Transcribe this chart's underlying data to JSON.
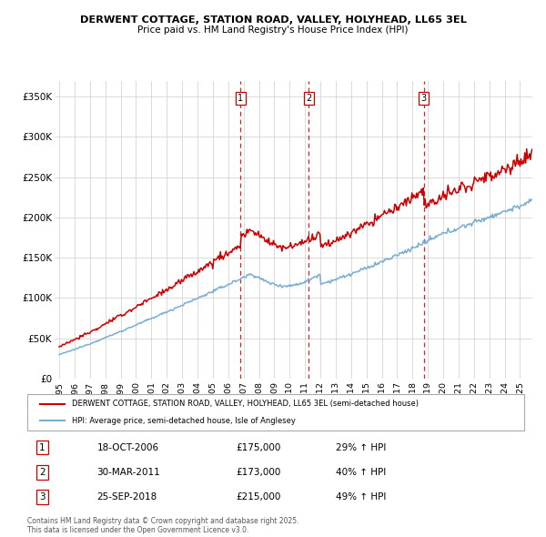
{
  "title": "DERWENT COTTAGE, STATION ROAD, VALLEY, HOLYHEAD, LL65 3EL",
  "subtitle": "Price paid vs. HM Land Registry's House Price Index (HPI)",
  "ylabel_ticks": [
    "£0",
    "£50K",
    "£100K",
    "£150K",
    "£200K",
    "£250K",
    "£300K",
    "£350K"
  ],
  "ytick_vals": [
    0,
    50000,
    100000,
    150000,
    200000,
    250000,
    300000,
    350000
  ],
  "ylim": [
    0,
    370000
  ],
  "xlim_start": 1994.7,
  "xlim_end": 2025.8,
  "house_color": "#cc0000",
  "hpi_color": "#7aadd4",
  "background_color": "#ffffff",
  "grid_color": "#cccccc",
  "transactions": [
    {
      "num": 1,
      "year": 2006.8,
      "price": 175000,
      "date": "18-OCT-2006",
      "pct": "29%",
      "dir": "↑"
    },
    {
      "num": 2,
      "year": 2011.25,
      "price": 173000,
      "date": "30-MAR-2011",
      "pct": "40%",
      "dir": "↑"
    },
    {
      "num": 3,
      "year": 2018.73,
      "price": 215000,
      "date": "25-SEP-2018",
      "pct": "49%",
      "dir": "↑"
    }
  ],
  "legend_house_label": "DERWENT COTTAGE, STATION ROAD, VALLEY, HOLYHEAD, LL65 3EL (semi-detached house)",
  "legend_hpi_label": "HPI: Average price, semi-detached house, Isle of Anglesey",
  "footer": "Contains HM Land Registry data © Crown copyright and database right 2025.\nThis data is licensed under the Open Government Licence v3.0.",
  "x_tick_years": [
    1995,
    1996,
    1997,
    1998,
    1999,
    2000,
    2001,
    2002,
    2003,
    2004,
    2005,
    2006,
    2007,
    2008,
    2009,
    2010,
    2011,
    2012,
    2013,
    2014,
    2015,
    2016,
    2017,
    2018,
    2019,
    2020,
    2021,
    2022,
    2023,
    2024,
    2025
  ]
}
